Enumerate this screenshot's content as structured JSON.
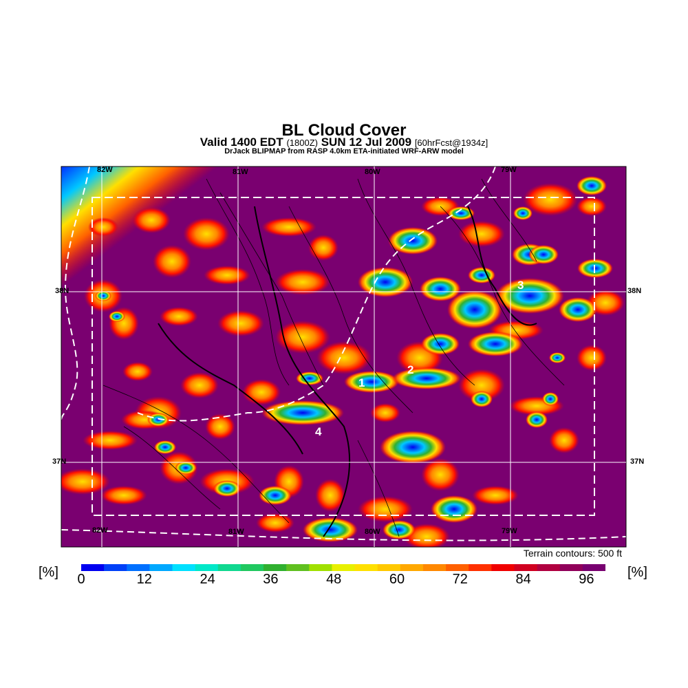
{
  "title": "BL Cloud Cover",
  "subtitle": {
    "valid": "Valid 1400 EDT",
    "utc": "(1800Z)",
    "date": "SUN 12 Jul 2009",
    "fcst": "[60hrFcst@1934z]"
  },
  "model_line": "DrJack BLIPMAP from RASP 4.0km ETA-initiated WRF-ARW model",
  "longitude_labels_top": [
    "82W",
    "81W",
    "80W",
    "79W"
  ],
  "longitude_labels_bottom": [
    "82W",
    "81W",
    "80W",
    "79W"
  ],
  "latitude_labels_left": [
    "38N",
    "37N"
  ],
  "latitude_labels_right": [
    "38N",
    "37N"
  ],
  "site_markers": [
    "1",
    "2",
    "3",
    "4"
  ],
  "terrain_note": "Terrain contours: 500 ft",
  "colorbar": {
    "unit_left": "[%]",
    "unit_right": "[%]",
    "ticks": [
      "0",
      "12",
      "24",
      "36",
      "48",
      "60",
      "72",
      "84",
      "96"
    ],
    "colors": [
      "#0000f0",
      "#0040f8",
      "#0070ff",
      "#00a8ff",
      "#00e0ff",
      "#00e8c8",
      "#10d890",
      "#20c860",
      "#30b030",
      "#60c020",
      "#a0e000",
      "#e8f000",
      "#ffe000",
      "#ffc800",
      "#ffa800",
      "#ff8800",
      "#ff6000",
      "#ff3000",
      "#f00000",
      "#d00020",
      "#b00040",
      "#90005a",
      "#780070"
    ]
  },
  "fill_color": "#7a0070"
}
